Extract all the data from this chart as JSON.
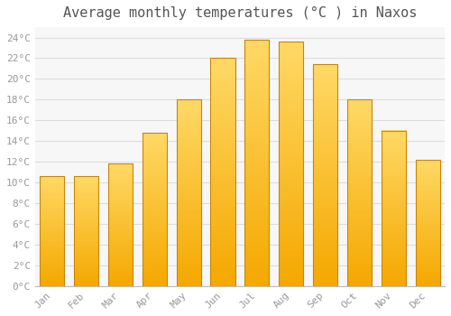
{
  "title": "Average monthly temperatures (°C ) in Naxos",
  "months": [
    "Jan",
    "Feb",
    "Mar",
    "Apr",
    "May",
    "Jun",
    "Jul",
    "Aug",
    "Sep",
    "Oct",
    "Nov",
    "Dec"
  ],
  "temperatures": [
    10.6,
    10.6,
    11.8,
    14.8,
    18.0,
    22.0,
    23.8,
    23.6,
    21.4,
    18.0,
    15.0,
    12.2
  ],
  "bar_color_bottom": "#F5A800",
  "bar_color_top": "#FFD966",
  "bar_edge_color": "#C8860A",
  "background_color": "#FFFFFF",
  "plot_bg_color": "#F7F7F7",
  "grid_color": "#DDDDDD",
  "text_color": "#999999",
  "ylim": [
    0,
    25
  ],
  "ytick_step": 2,
  "title_fontsize": 11,
  "tick_fontsize": 8,
  "tick_font_family": "monospace",
  "bar_width": 0.72
}
